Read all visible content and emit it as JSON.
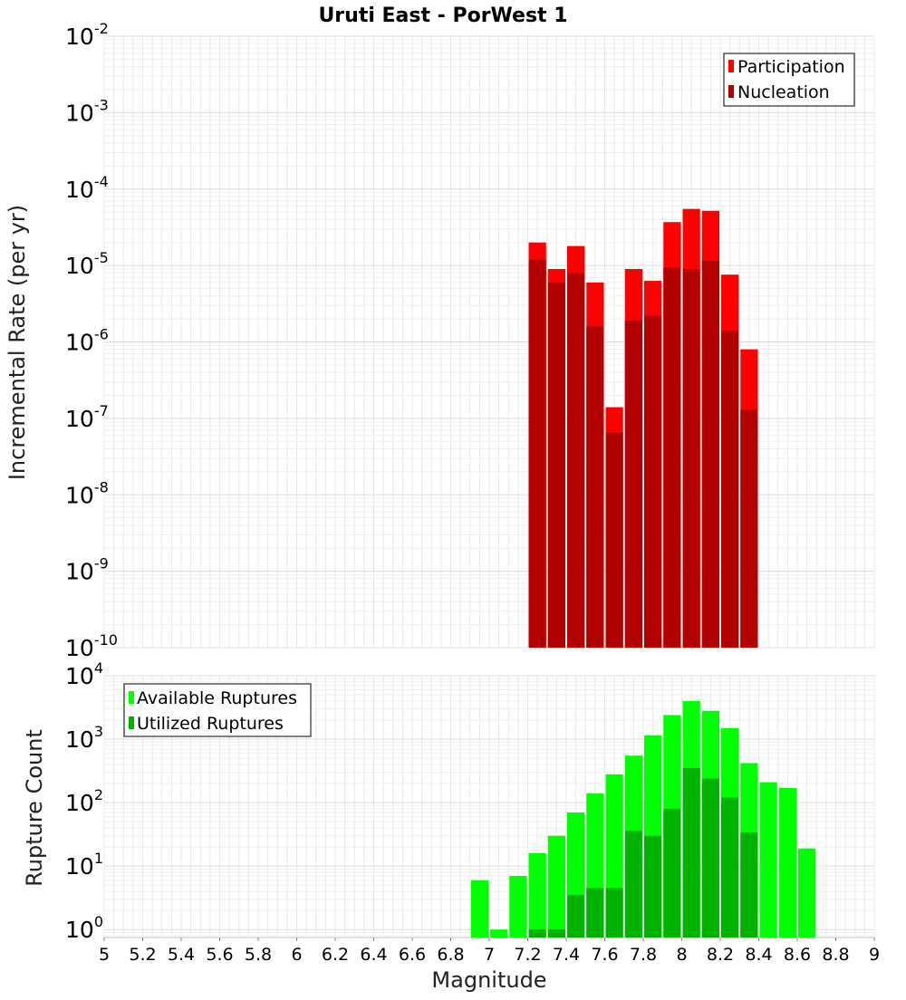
{
  "title": "Uruti East - PorWest 1",
  "colors": {
    "participation": "#ff0000",
    "nucleation": "#b20000",
    "available": "#00ff00",
    "utilized": "#00b200",
    "grid": "#e8e8e8",
    "frame": "#c0c0c0"
  },
  "chart_data": [
    {
      "type": "bar",
      "ylabel": "Incremental Rate (per yr)",
      "xlim": [
        5,
        9
      ],
      "ylim": [
        1e-10,
        0.01
      ],
      "yscale": "log",
      "yticks": [
        {
          "base": "10",
          "exp": "-10"
        },
        {
          "base": "10",
          "exp": "-9"
        },
        {
          "base": "10",
          "exp": "-8"
        },
        {
          "base": "10",
          "exp": "-7"
        },
        {
          "base": "10",
          "exp": "-6"
        },
        {
          "base": "10",
          "exp": "-5"
        },
        {
          "base": "10",
          "exp": "-4"
        },
        {
          "base": "10",
          "exp": "-3"
        },
        {
          "base": "10",
          "exp": "-2"
        }
      ],
      "legend_position": "top-right",
      "bin_width": 0.1,
      "series": [
        {
          "name": "Participation",
          "color": "#ff0000",
          "x": [
            7.25,
            7.35,
            7.45,
            7.55,
            7.65,
            7.75,
            7.85,
            7.95,
            8.05,
            8.15,
            8.25,
            8.35
          ],
          "values": [
            2e-05,
            9e-06,
            1.8e-05,
            6e-06,
            1.4e-07,
            9e-06,
            6.3e-06,
            3.7e-05,
            5.5e-05,
            5.2e-05,
            7.6e-06,
            8e-07
          ]
        },
        {
          "name": "Nucleation",
          "color": "#b20000",
          "x": [
            7.25,
            7.35,
            7.45,
            7.55,
            7.65,
            7.75,
            7.85,
            7.95,
            8.05,
            8.15,
            8.25,
            8.35
          ],
          "values": [
            1.2e-05,
            6e-06,
            8e-06,
            1.6e-06,
            6.5e-08,
            1.9e-06,
            2.2e-06,
            9.5e-06,
            9e-06,
            1.15e-05,
            1.4e-06,
            1.3e-07
          ]
        }
      ]
    },
    {
      "type": "bar",
      "xlabel": "Magnitude",
      "ylabel": "Rupture Count",
      "xlim": [
        5,
        9
      ],
      "ylim": [
        0.75,
        10000
      ],
      "yscale": "log",
      "yticks": [
        {
          "base": "10",
          "exp": "0"
        },
        {
          "base": "10",
          "exp": "1"
        },
        {
          "base": "10",
          "exp": "2"
        },
        {
          "base": "10",
          "exp": "3"
        },
        {
          "base": "10",
          "exp": "4"
        }
      ],
      "xticks": [
        "5",
        "5.2",
        "5.4",
        "5.6",
        "5.8",
        "6",
        "6.2",
        "6.4",
        "6.6",
        "6.8",
        "7",
        "7.2",
        "7.4",
        "7.6",
        "7.8",
        "8",
        "8.2",
        "8.4",
        "8.6",
        "8.8",
        "9"
      ],
      "legend_position": "top-left",
      "bin_width": 0.1,
      "series": [
        {
          "name": "Available Ruptures",
          "color": "#00ff00",
          "x": [
            6.95,
            7.05,
            7.15,
            7.25,
            7.35,
            7.45,
            7.55,
            7.65,
            7.75,
            7.85,
            7.95,
            8.05,
            8.15,
            8.25,
            8.35,
            8.45,
            8.55,
            8.65
          ],
          "values": [
            6,
            1,
            7,
            16,
            30,
            70,
            140,
            280,
            550,
            1150,
            2400,
            4000,
            2800,
            1500,
            420,
            210,
            170,
            19
          ]
        },
        {
          "name": "Utilized Ruptures",
          "color": "#00b200",
          "x": [
            7.25,
            7.35,
            7.45,
            7.55,
            7.65,
            7.75,
            7.85,
            7.95,
            8.05,
            8.15,
            8.25,
            8.35
          ],
          "values": [
            1,
            1,
            3.5,
            4.5,
            4.5,
            36,
            30,
            80,
            350,
            240,
            120,
            34
          ]
        }
      ]
    }
  ]
}
